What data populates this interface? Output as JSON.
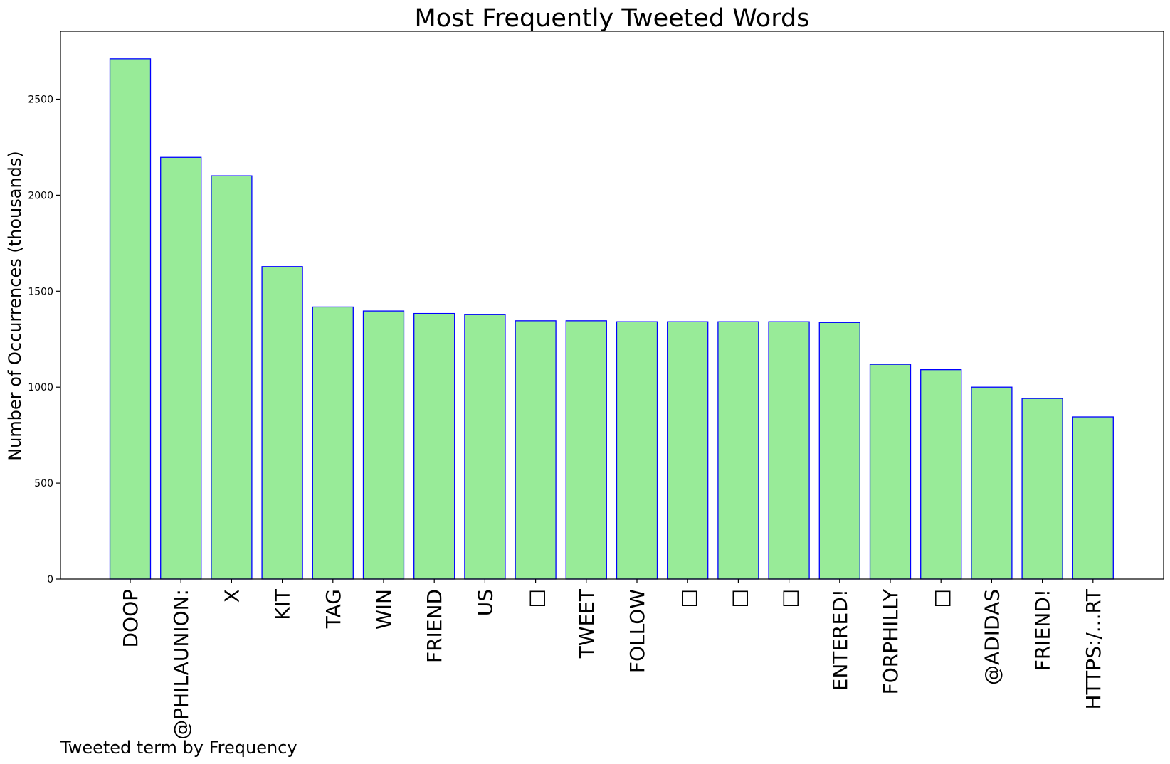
{
  "chart_data": {
    "type": "bar",
    "title": "Most Frequently Tweeted Words",
    "ylabel": "Number of Occurrences (thousands)",
    "xlabel": "Tweeted term by Frequency",
    "categories": [
      "DOOP",
      "@PHILAUNION:",
      "X",
      "KIT",
      "TAG",
      "WIN",
      "FRIEND",
      "US",
      "□",
      "TWEET",
      "FOLLOW",
      "□",
      "□",
      "□",
      "ENTERED!",
      "FORPHILLY",
      "□",
      "@ADIDAS",
      "FRIEND!",
      "HTTPS:/...RT"
    ],
    "values": [
      2710,
      2197,
      2101,
      1628,
      1418,
      1397,
      1384,
      1378,
      1346,
      1346,
      1341,
      1341,
      1341,
      1341,
      1337,
      1119,
      1091,
      1000,
      941,
      845
    ],
    "ylim": [
      0,
      2854
    ],
    "yticks": [
      0,
      500,
      1000,
      1500,
      2000,
      2500
    ],
    "grid": false,
    "legend": "none",
    "colors": {
      "bar_fill": "#98eb98",
      "bar_edge": "#0000ff"
    }
  }
}
